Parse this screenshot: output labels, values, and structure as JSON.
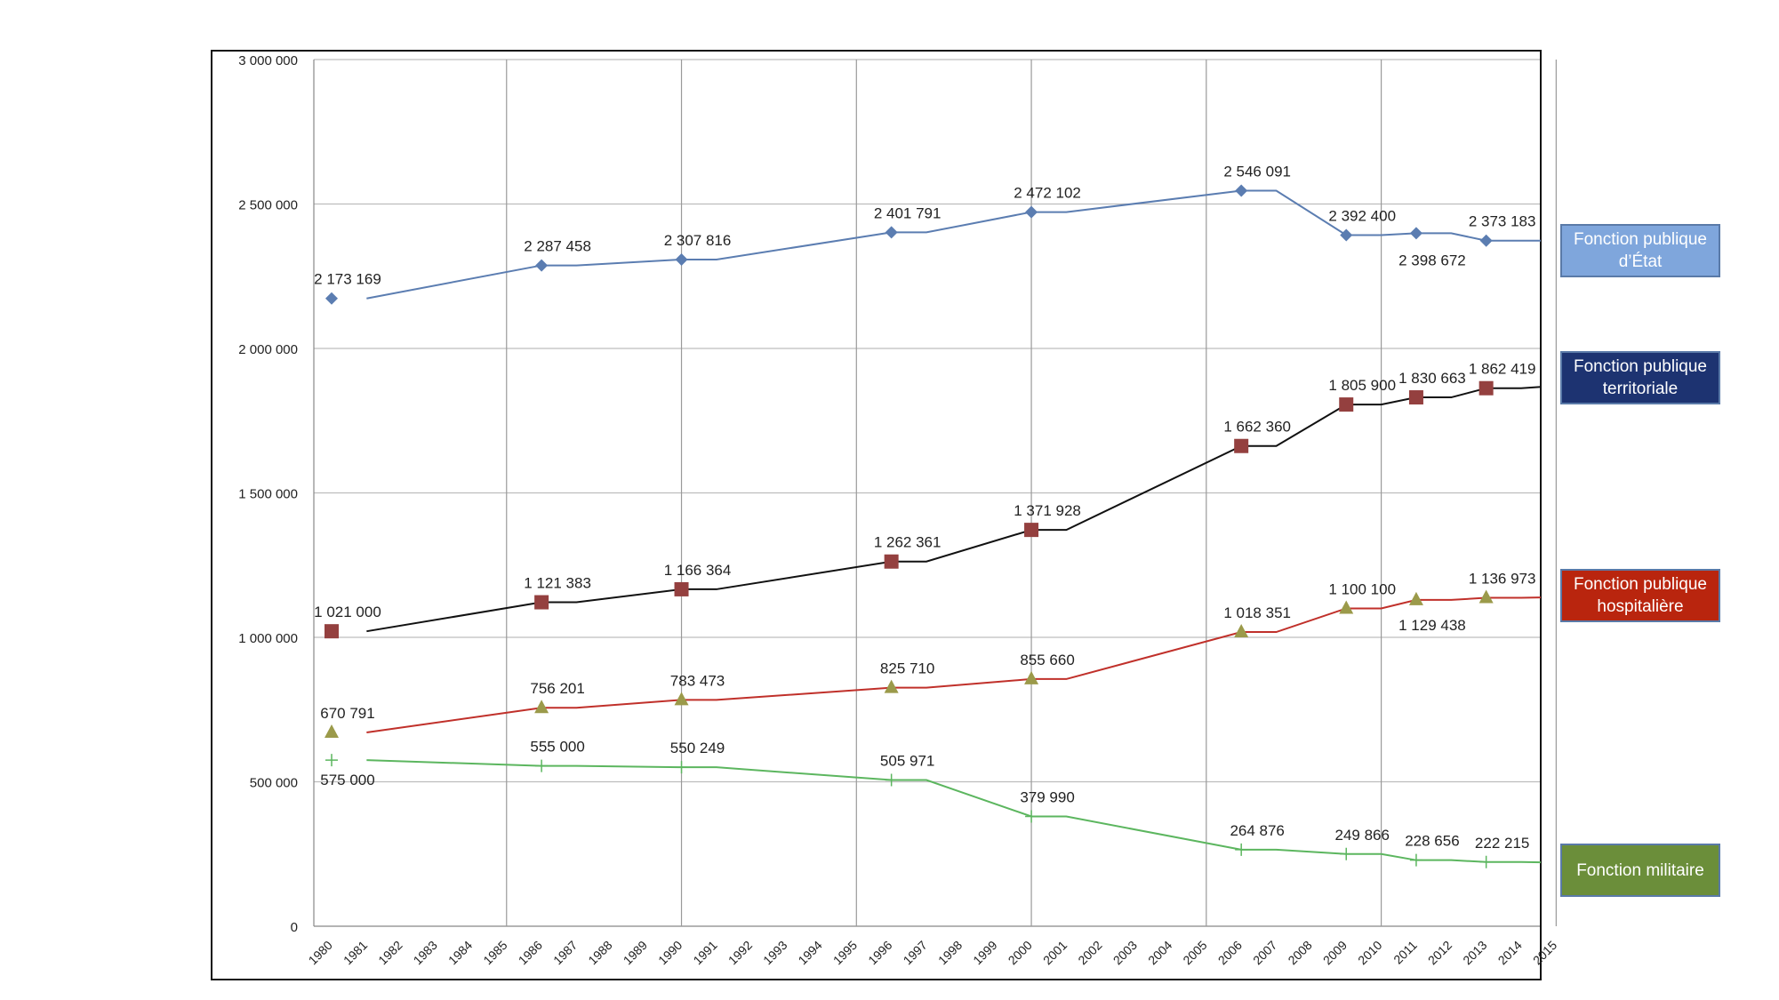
{
  "chart_data": {
    "type": "line",
    "title": "",
    "xlabel": "",
    "ylabel": "",
    "ylim": [
      0,
      3000000
    ],
    "y_ticks": [
      0,
      500000,
      1000000,
      1500000,
      2000000,
      2500000,
      3000000
    ],
    "y_tick_labels": [
      "0",
      "500 000",
      "1 000 000",
      "1 500 000",
      "2 000 000",
      "2 500 000",
      "3 000 000"
    ],
    "x_categories": [
      "1980",
      "1981",
      "1982",
      "1983",
      "1984",
      "1985",
      "1986",
      "1987",
      "1988",
      "1989",
      "1990",
      "1991",
      "1992",
      "1993",
      "1994",
      "1995",
      "1996",
      "1997",
      "1998",
      "1999",
      "2000",
      "2001",
      "2002",
      "2003",
      "2004",
      "2005",
      "2006",
      "2007",
      "2008",
      "2009",
      "2010",
      "2011",
      "2012",
      "2013",
      "2014",
      "2015"
    ],
    "grid": true,
    "legend_position": "right",
    "series": [
      {
        "name": "Fonction publique\nd’État",
        "color": "#5b7db1",
        "legend_fill": "#7fa6dc",
        "marker": "diamond",
        "points": [
          {
            "x": "1980",
            "y": 2173169,
            "label": "2 173 169"
          },
          {
            "x": "1986",
            "y": 2287458,
            "label": "2 287 458"
          },
          {
            "x": "1990",
            "y": 2307816,
            "label": "2 307 816"
          },
          {
            "x": "1996",
            "y": 2401791,
            "label": "2 401 791"
          },
          {
            "x": "2000",
            "y": 2472102,
            "label": "2 472 102"
          },
          {
            "x": "2006",
            "y": 2546091,
            "label": "2 546 091"
          },
          {
            "x": "2009",
            "y": 2392400,
            "label": "2 392 400"
          },
          {
            "x": "2011",
            "y": 2398672,
            "label": "2 398 672"
          },
          {
            "x": "2013",
            "y": 2373183,
            "label": "2 373 183"
          }
        ]
      },
      {
        "name": "Fonction publique\nterritoriale",
        "color": "#111111",
        "legend_fill": "#1d3371",
        "marker": "square",
        "marker_color": "#94403f",
        "points": [
          {
            "x": "1980",
            "y": 1021000,
            "label": "1 021 000"
          },
          {
            "x": "1986",
            "y": 1121383,
            "label": "1 121 383"
          },
          {
            "x": "1990",
            "y": 1166364,
            "label": "1 166 364"
          },
          {
            "x": "1996",
            "y": 1262361,
            "label": "1 262 361"
          },
          {
            "x": "2000",
            "y": 1371928,
            "label": "1 371 928"
          },
          {
            "x": "2006",
            "y": 1662360,
            "label": "1 662 360"
          },
          {
            "x": "2009",
            "y": 1805900,
            "label": "1 805 900"
          },
          {
            "x": "2011",
            "y": 1830663,
            "label": "1 830 663"
          },
          {
            "x": "2013",
            "y": 1862419,
            "label": "1 862 419"
          }
        ]
      },
      {
        "name": "Fonction publique\nhospitalière",
        "color": "#c0302a",
        "legend_fill": "#b9250e",
        "marker": "triangle",
        "marker_color": "#9b9a4a",
        "points": [
          {
            "x": "1980",
            "y": 670791,
            "label": "670 791"
          },
          {
            "x": "1986",
            "y": 756201,
            "label": "756 201"
          },
          {
            "x": "1990",
            "y": 783473,
            "label": "783 473"
          },
          {
            "x": "1996",
            "y": 825710,
            "label": "825 710"
          },
          {
            "x": "2000",
            "y": 855660,
            "label": "855 660"
          },
          {
            "x": "2006",
            "y": 1018351,
            "label": "1 018 351"
          },
          {
            "x": "2009",
            "y": 1100100,
            "label": "1 100 100"
          },
          {
            "x": "2011",
            "y": 1129438,
            "label": "1 129 438"
          },
          {
            "x": "2013",
            "y": 1136973,
            "label": "1 136 973"
          }
        ]
      },
      {
        "name": "Fonction militaire",
        "color": "#5cb65f",
        "legend_fill": "#6b8e3a",
        "marker": "plus",
        "points": [
          {
            "x": "1980",
            "y": 575000,
            "label": "575 000"
          },
          {
            "x": "1986",
            "y": 555000,
            "label": "555 000"
          },
          {
            "x": "1990",
            "y": 550249,
            "label": "550 249"
          },
          {
            "x": "1996",
            "y": 505971,
            "label": "505 971"
          },
          {
            "x": "2000",
            "y": 379990,
            "label": "379 990"
          },
          {
            "x": "2006",
            "y": 264876,
            "label": "264 876"
          },
          {
            "x": "2009",
            "y": 249866,
            "label": "249 866"
          },
          {
            "x": "2011",
            "y": 228656,
            "label": "228 656"
          },
          {
            "x": "2013",
            "y": 222215,
            "label": "222 215"
          }
        ]
      }
    ]
  }
}
